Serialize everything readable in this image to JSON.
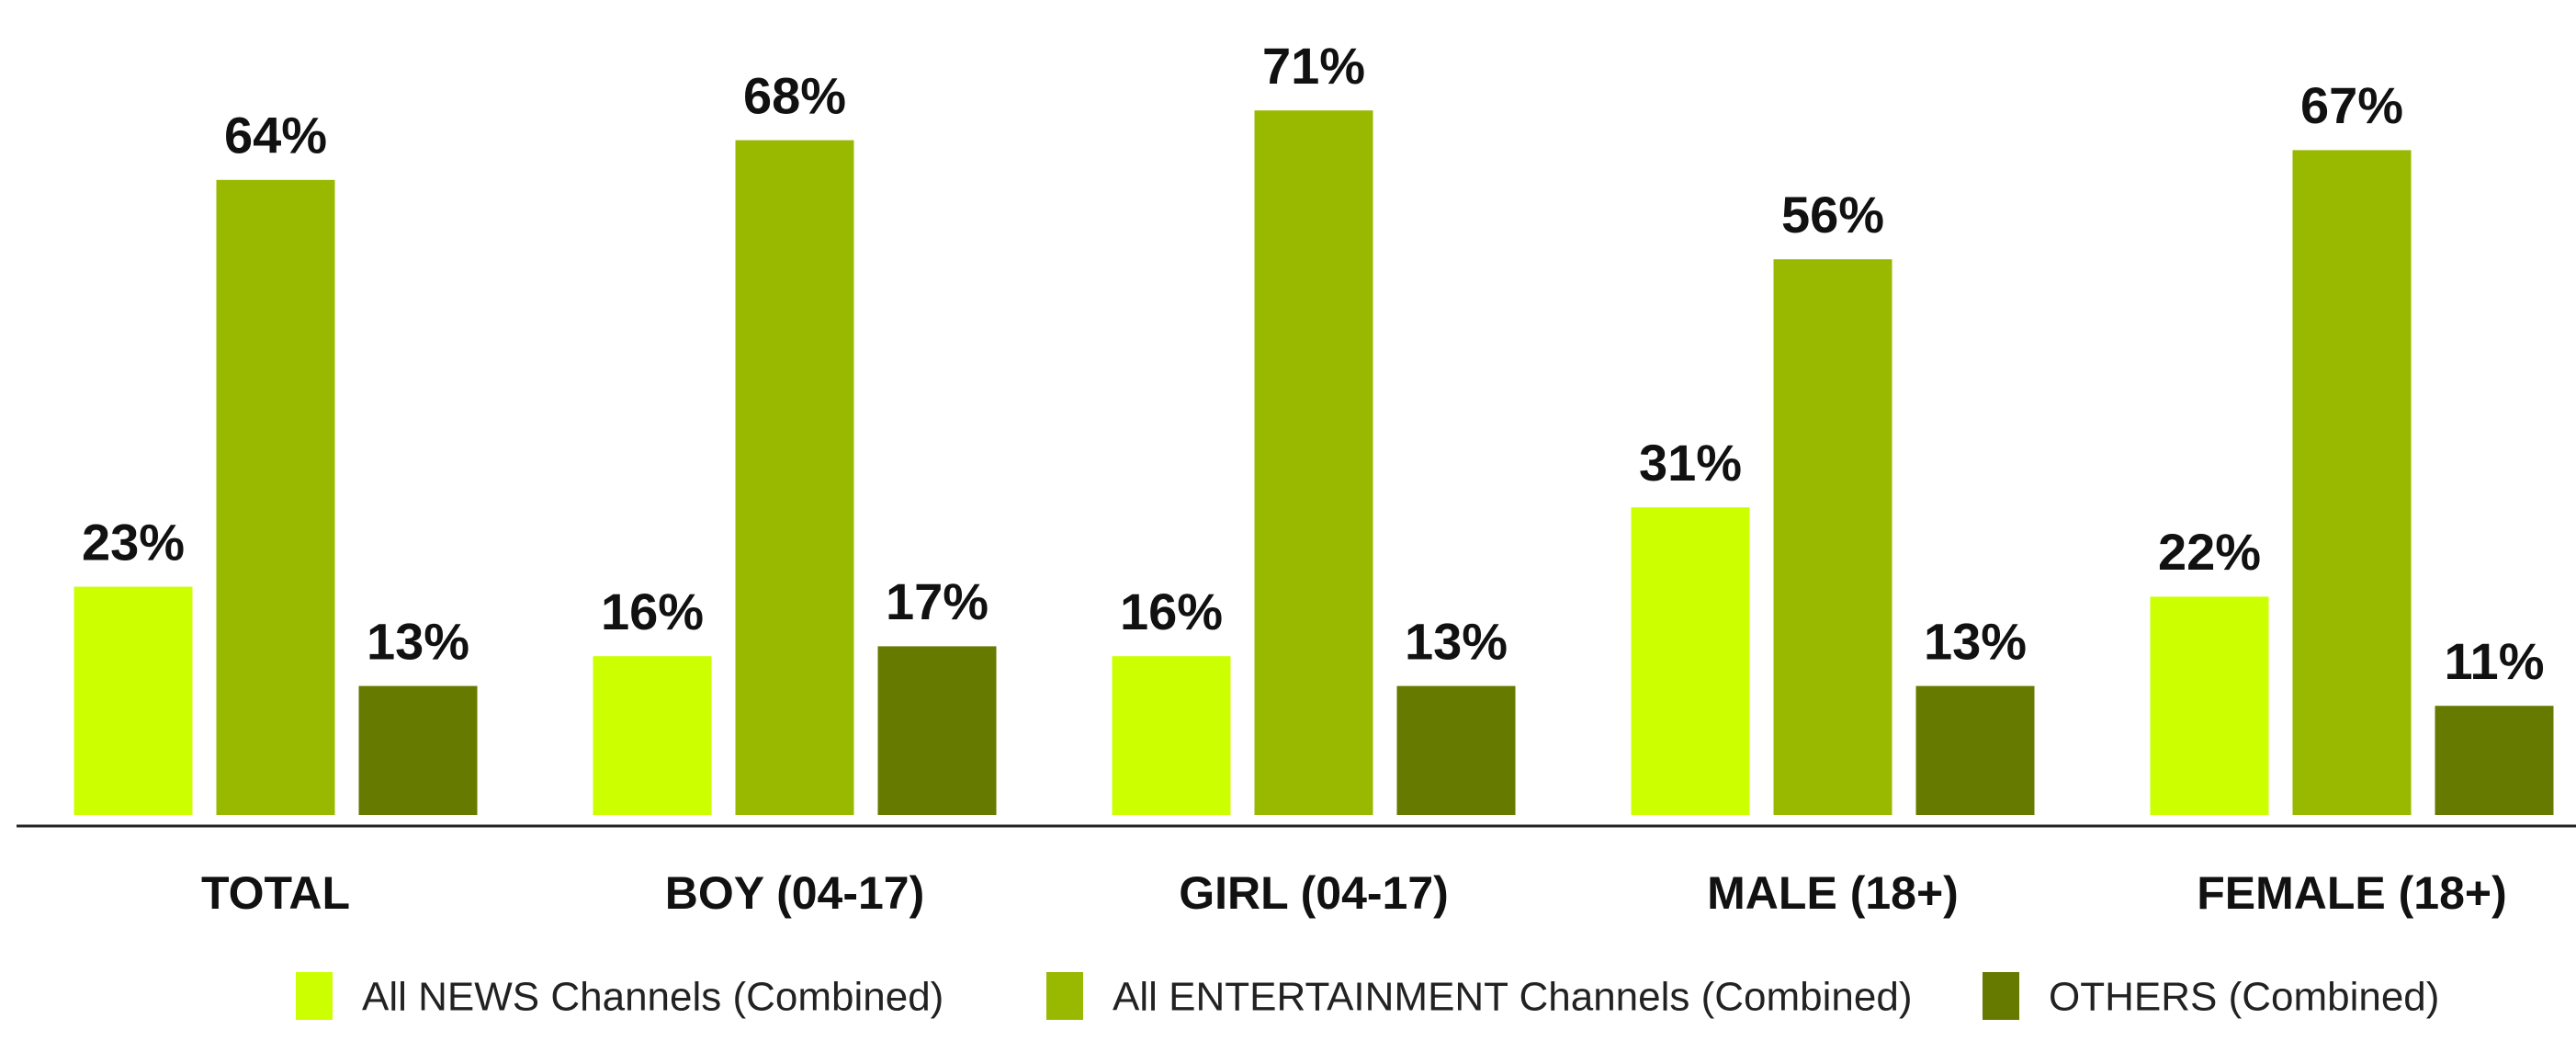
{
  "chart_data": {
    "type": "bar",
    "categories": [
      "TOTAL",
      "BOY (04-17)",
      "GIRL (04-17)",
      "MALE (18+)",
      "FEMALE (18+)"
    ],
    "series": [
      {
        "name": "All NEWS Channels (Combined)",
        "color": "#ccff00",
        "values": [
          23,
          16,
          16,
          31,
          22
        ],
        "value_labels": [
          "23%",
          "16%",
          "16%",
          "31%",
          "22%"
        ]
      },
      {
        "name": "All ENTERTAINMENT Channels (Combined)",
        "color": "#99b800",
        "values": [
          64,
          68,
          71,
          56,
          67
        ],
        "value_labels": [
          "64%",
          "68%",
          "71%",
          "56%",
          "67%"
        ]
      },
      {
        "name": "OTHERS (Combined)",
        "color": "#667a00",
        "values": [
          13,
          17,
          13,
          13,
          11
        ],
        "value_labels": [
          "13%",
          "17%",
          "13%",
          "13%",
          "11%"
        ]
      }
    ]
  }
}
